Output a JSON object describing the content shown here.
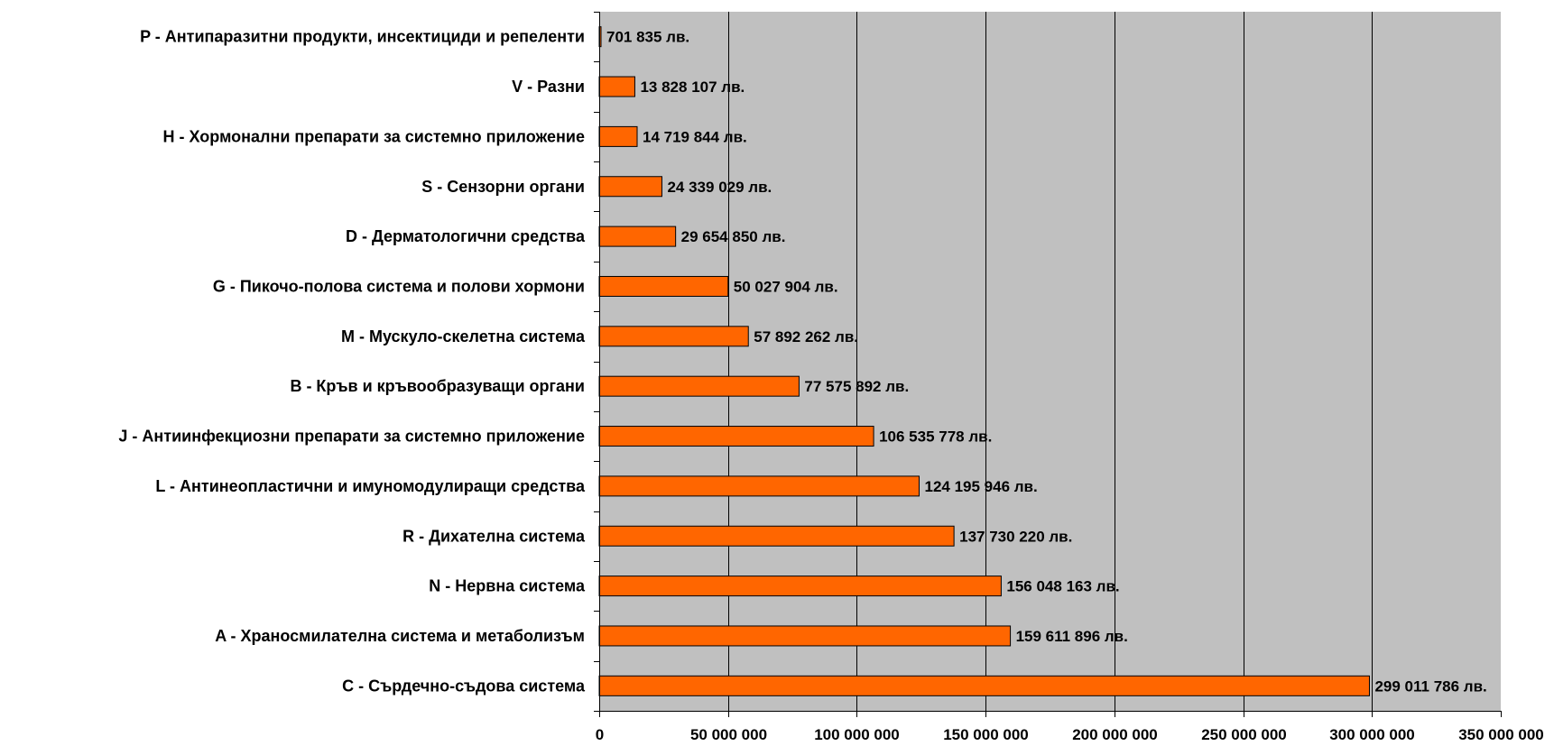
{
  "chart_data": {
    "type": "bar",
    "orientation": "horizontal",
    "title": "",
    "xlabel": "",
    "ylabel": "",
    "xlim": [
      0,
      350000000
    ],
    "grid": true,
    "legend": "none",
    "colors": {
      "bar": "#FF6600",
      "bar_border": "#000000",
      "plot_bg": "#C0C0C0",
      "gridline": "#000000"
    },
    "x_ticks": [
      {
        "value": 0,
        "label": "0"
      },
      {
        "value": 50000000,
        "label": "50 000 000"
      },
      {
        "value": 100000000,
        "label": "100 000 000"
      },
      {
        "value": 150000000,
        "label": "150 000 000"
      },
      {
        "value": 200000000,
        "label": "200 000 000"
      },
      {
        "value": 250000000,
        "label": "250 000 000"
      },
      {
        "value": 300000000,
        "label": "300 000 000"
      },
      {
        "value": 350000000,
        "label": "350 000 000"
      }
    ],
    "bars": [
      {
        "category": "P - Антипаразитни продукти, инсектициди и репеленти",
        "value": 701835,
        "label": "701 835 лв."
      },
      {
        "category": "V - Разни",
        "value": 13828107,
        "label": "13 828 107 лв."
      },
      {
        "category": "H - Хормонални препарати за системно приложение",
        "value": 14719844,
        "label": "14 719 844 лв."
      },
      {
        "category": "S - Сензорни органи",
        "value": 24339029,
        "label": "24 339 029 лв."
      },
      {
        "category": "D - Дерматологични средства",
        "value": 29654850,
        "label": "29 654 850 лв."
      },
      {
        "category": "G - Пикочо-полова система и полови хормони",
        "value": 50027904,
        "label": "50 027 904 лв."
      },
      {
        "category": "M - Мускуло-скелетна система",
        "value": 57892262,
        "label": "57 892 262 лв."
      },
      {
        "category": "B - Кръв и кръвообразуващи органи",
        "value": 77575892,
        "label": "77 575 892 лв."
      },
      {
        "category": "J - Антиинфекциозни препарати за системно приложение",
        "value": 106535778,
        "label": "106 535 778 лв."
      },
      {
        "category": "L - Антинеопластични и имуномодулиращи средства",
        "value": 124195946,
        "label": "124 195 946 лв."
      },
      {
        "category": "R - Дихателна система",
        "value": 137730220,
        "label": "137 730 220 лв."
      },
      {
        "category": "N - Нервна система",
        "value": 156048163,
        "label": "156 048 163 лв."
      },
      {
        "category": "A - Храносмилателна система и метаболизъм",
        "value": 159611896,
        "label": "159 611 896 лв."
      },
      {
        "category": "C - Сърдечно-съдова система",
        "value": 299011786,
        "label": "299 011 786 лв."
      }
    ]
  }
}
